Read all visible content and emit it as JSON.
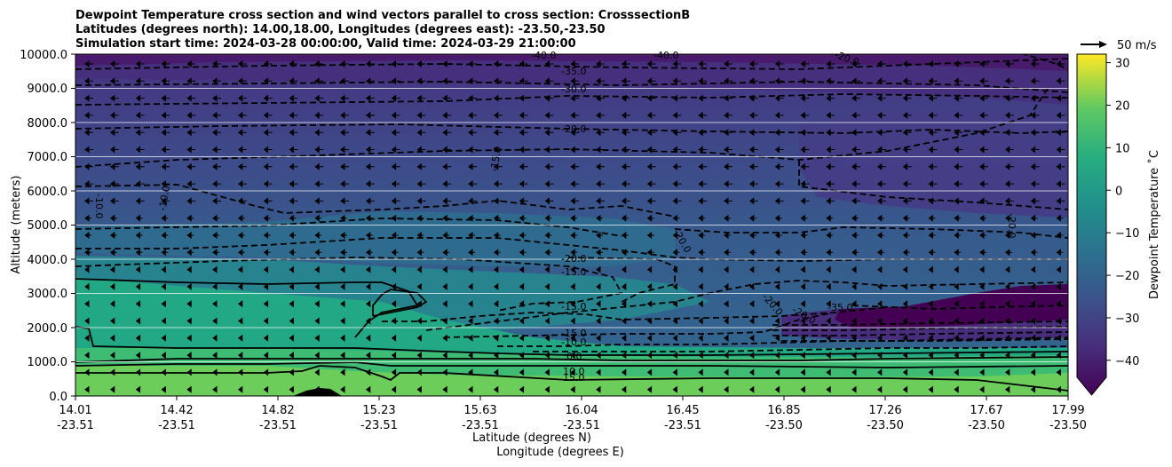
{
  "chart_data": {
    "type": "contourf",
    "title": [
      "Dewpoint Temperature cross section and wind vectors parallel to cross section: CrosssectionB",
      "Latitudes (degrees north): 14.00,18.00, Longitudes (degrees east): -23.50,-23.50",
      "Simulation start time: 2024-03-28 00:00:00, Valid time: 2024-03-29 21:00:00"
    ],
    "xlabel": "Latitude (degrees N)",
    "xlabel2": "Longitude (degrees E)",
    "ylabel": "Altitude (meters)",
    "ylim": [
      0,
      10000
    ],
    "yticks": [
      "0.0",
      "1000.0",
      "2000.0",
      "3000.0",
      "4000.0",
      "5000.0",
      "6000.0",
      "7000.0",
      "8000.0",
      "9000.0",
      "10000.0"
    ],
    "xticks_lat": [
      "14.01",
      "14.42",
      "14.82",
      "15.23",
      "15.63",
      "16.04",
      "16.45",
      "16.85",
      "17.26",
      "17.67",
      "17.99"
    ],
    "xticks_lon": [
      "-23.51",
      "-23.51",
      "-23.51",
      "-23.51",
      "-23.51",
      "-23.51",
      "-23.51",
      "-23.50",
      "-23.50",
      "-23.50",
      "-23.50"
    ],
    "colorbar": {
      "label": "Dewpoint Temperature ˚C",
      "range": [
        -44,
        32
      ],
      "ticks": [
        "30",
        "20",
        "10",
        "0",
        "−10",
        "−20",
        "−30",
        "−40"
      ]
    },
    "quiver_key": "50 m/s",
    "contour_labels": [
      "-40.0",
      "-35.0",
      "-30.0",
      "-20.0",
      "-15.0",
      "-10.0",
      "-10.0",
      "-20.0",
      "-20.0",
      "-15.0",
      "-15.0",
      "-15.0",
      "-10.0",
      "0.0",
      "10.0",
      "15.0",
      "-20.0",
      "-20.0",
      "-35.0",
      "-20.0",
      "-40.0",
      "-15.0"
    ],
    "colors": {
      "band_surface": "#6ccd5a",
      "band_low": "#3fbc73",
      "band_mid": "#22a884",
      "band_3km": "#21918c",
      "band_upper": "#2a788e",
      "band_top": "#414487",
      "band_dry": "#440154"
    }
  }
}
